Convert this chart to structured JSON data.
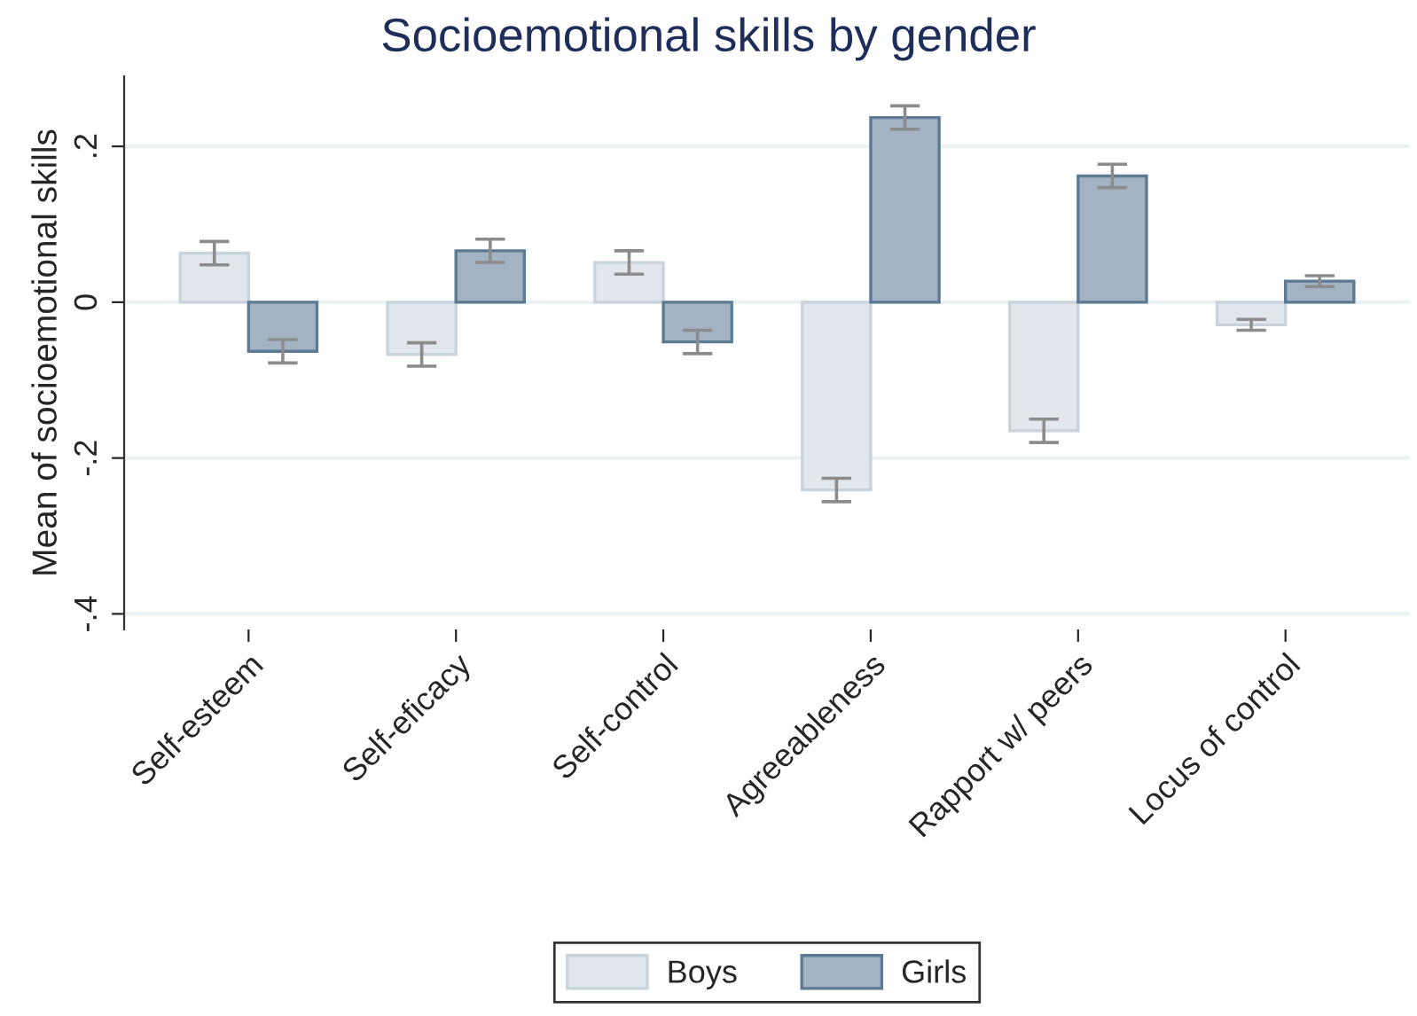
{
  "chart_data": {
    "type": "bar",
    "title": "Socioemotional skills by gender",
    "ylabel": "Mean of socioemotional skills",
    "categories": [
      "Self-esteem",
      "Self-eficacy",
      "Self-control",
      "Agreeableness",
      "Rapport w/ peers",
      "Locus of control"
    ],
    "series": [
      {
        "name": "Boys",
        "color": "#e1e7ec",
        "values": [
          0.063,
          -0.067,
          0.051,
          -0.241,
          -0.165,
          -0.029
        ],
        "errors": [
          0.015,
          0.015,
          0.015,
          0.015,
          0.015,
          0.007
        ]
      },
      {
        "name": "Girls",
        "color": "#a3b3c3",
        "values": [
          -0.063,
          0.066,
          -0.051,
          0.237,
          0.162,
          0.027
        ],
        "errors": [
          0.015,
          0.015,
          0.015,
          0.015,
          0.015,
          0.007
        ]
      }
    ],
    "ylim": [
      -0.42,
      0.29
    ],
    "yticks": [
      {
        "value": -0.4,
        "label": "-.4"
      },
      {
        "value": -0.2,
        "label": "-.2"
      },
      0,
      {
        "value": 0.2,
        "label": ".2"
      }
    ],
    "grid": "y",
    "legend": "bottom"
  }
}
